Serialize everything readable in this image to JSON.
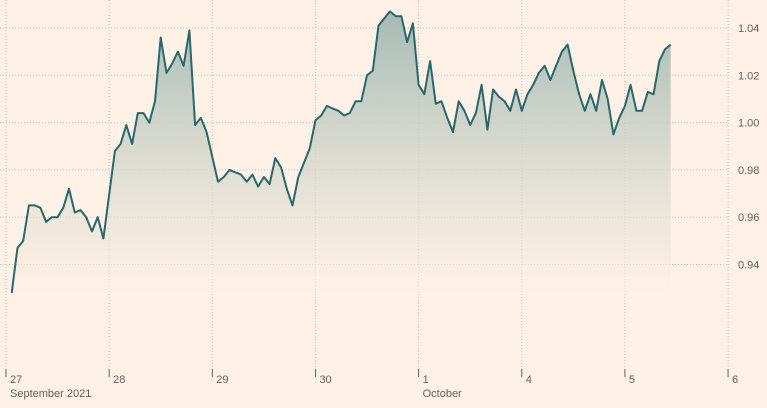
{
  "chart_data": {
    "type": "area",
    "title": "",
    "xlabel": "",
    "ylabel": "",
    "ylim": [
      0.92,
      1.048
    ],
    "yticks": [
      "0.94",
      "0.96",
      "0.98",
      "1.00",
      "1.02",
      "1.04"
    ],
    "ytick_values": [
      0.94,
      0.96,
      0.98,
      1.0,
      1.02,
      1.04
    ],
    "x_days": [
      "2021-09-27",
      "2021-09-28",
      "2021-09-29",
      "2021-09-30",
      "2021-10-01",
      "2021-10-04",
      "2021-10-05",
      "2021-10-06"
    ],
    "xtick_labels": [
      "27",
      "28",
      "29",
      "30",
      "1",
      "4",
      "5",
      "6"
    ],
    "xtick_sublabels": {
      "0": "September 2021",
      "4": "October"
    },
    "grid": true,
    "yaxis_side": "right",
    "colors": {
      "line": "#26686b",
      "fill_top": "#9fb7b1",
      "background": "#fff1e5",
      "grid": "#c9bfb6",
      "text": "#66605c"
    },
    "points": [
      [
        "2021-09-27T01:20",
        0.928
      ],
      [
        "2021-09-27T02:40",
        0.947
      ],
      [
        "2021-09-27T04:00",
        0.95
      ],
      [
        "2021-09-27T05:20",
        0.965
      ],
      [
        "2021-09-27T06:40",
        0.965
      ],
      [
        "2021-09-27T08:00",
        0.964
      ],
      [
        "2021-09-27T09:20",
        0.958
      ],
      [
        "2021-09-27T10:40",
        0.96
      ],
      [
        "2021-09-27T12:00",
        0.96
      ],
      [
        "2021-09-27T13:20",
        0.964
      ],
      [
        "2021-09-27T14:40",
        0.972
      ],
      [
        "2021-09-27T16:00",
        0.962
      ],
      [
        "2021-09-27T17:20",
        0.963
      ],
      [
        "2021-09-27T18:40",
        0.96
      ],
      [
        "2021-09-27T20:00",
        0.954
      ],
      [
        "2021-09-27T21:20",
        0.96
      ],
      [
        "2021-09-27T22:40",
        0.951
      ],
      [
        "2021-09-28T01:20",
        0.988
      ],
      [
        "2021-09-28T02:40",
        0.991
      ],
      [
        "2021-09-28T04:00",
        0.999
      ],
      [
        "2021-09-28T05:20",
        0.991
      ],
      [
        "2021-09-28T06:40",
        1.004
      ],
      [
        "2021-09-28T08:00",
        1.004
      ],
      [
        "2021-09-28T09:20",
        1.0
      ],
      [
        "2021-09-28T10:40",
        1.009
      ],
      [
        "2021-09-28T12:00",
        1.036
      ],
      [
        "2021-09-28T13:20",
        1.021
      ],
      [
        "2021-09-28T14:40",
        1.025
      ],
      [
        "2021-09-28T16:00",
        1.03
      ],
      [
        "2021-09-28T17:20",
        1.024
      ],
      [
        "2021-09-28T18:40",
        1.039
      ],
      [
        "2021-09-28T20:00",
        0.999
      ],
      [
        "2021-09-28T21:20",
        1.002
      ],
      [
        "2021-09-28T22:40",
        0.996
      ],
      [
        "2021-09-29T01:20",
        0.975
      ],
      [
        "2021-09-29T02:40",
        0.977
      ],
      [
        "2021-09-29T04:00",
        0.98
      ],
      [
        "2021-09-29T05:20",
        0.979
      ],
      [
        "2021-09-29T06:40",
        0.978
      ],
      [
        "2021-09-29T08:00",
        0.975
      ],
      [
        "2021-09-29T09:20",
        0.978
      ],
      [
        "2021-09-29T10:40",
        0.973
      ],
      [
        "2021-09-29T12:00",
        0.977
      ],
      [
        "2021-09-29T13:20",
        0.974
      ],
      [
        "2021-09-29T14:40",
        0.985
      ],
      [
        "2021-09-29T16:00",
        0.981
      ],
      [
        "2021-09-29T17:20",
        0.972
      ],
      [
        "2021-09-29T18:40",
        0.965
      ],
      [
        "2021-09-29T20:00",
        0.977
      ],
      [
        "2021-09-29T21:20",
        0.983
      ],
      [
        "2021-09-29T22:40",
        0.989
      ],
      [
        "2021-09-30T00:00",
        1.001
      ],
      [
        "2021-09-30T01:20",
        1.003
      ],
      [
        "2021-09-30T02:40",
        1.007
      ],
      [
        "2021-09-30T04:00",
        1.006
      ],
      [
        "2021-09-30T05:20",
        1.005
      ],
      [
        "2021-09-30T06:40",
        1.003
      ],
      [
        "2021-09-30T08:00",
        1.004
      ],
      [
        "2021-09-30T09:20",
        1.009
      ],
      [
        "2021-09-30T10:40",
        1.009
      ],
      [
        "2021-09-30T12:00",
        1.02
      ],
      [
        "2021-09-30T13:20",
        1.022
      ],
      [
        "2021-09-30T14:40",
        1.041
      ],
      [
        "2021-09-30T16:00",
        1.044
      ],
      [
        "2021-09-30T17:20",
        1.047
      ],
      [
        "2021-09-30T18:40",
        1.045
      ],
      [
        "2021-09-30T20:00",
        1.045
      ],
      [
        "2021-09-30T21:20",
        1.034
      ],
      [
        "2021-09-30T22:40",
        1.042
      ],
      [
        "2021-10-01T00:00",
        1.016
      ],
      [
        "2021-10-01T01:20",
        1.012
      ],
      [
        "2021-10-01T02:40",
        1.026
      ],
      [
        "2021-10-01T04:00",
        1.008
      ],
      [
        "2021-10-01T05:20",
        1.009
      ],
      [
        "2021-10-01T06:40",
        1.002
      ],
      [
        "2021-10-01T08:00",
        0.996
      ],
      [
        "2021-10-01T09:20",
        1.009
      ],
      [
        "2021-10-01T10:40",
        1.005
      ],
      [
        "2021-10-01T12:00",
        0.999
      ],
      [
        "2021-10-01T13:20",
        1.004
      ],
      [
        "2021-10-01T14:40",
        1.016
      ],
      [
        "2021-10-01T16:00",
        0.997
      ],
      [
        "2021-10-01T17:20",
        1.014
      ],
      [
        "2021-10-01T18:40",
        1.011
      ],
      [
        "2021-10-01T20:00",
        1.009
      ],
      [
        "2021-10-01T21:20",
        1.005
      ],
      [
        "2021-10-01T22:40",
        1.014
      ],
      [
        "2021-10-04T00:00",
        1.005
      ],
      [
        "2021-10-04T01:20",
        1.012
      ],
      [
        "2021-10-04T02:40",
        1.016
      ],
      [
        "2021-10-04T04:00",
        1.021
      ],
      [
        "2021-10-04T05:20",
        1.024
      ],
      [
        "2021-10-04T06:40",
        1.018
      ],
      [
        "2021-10-04T08:00",
        1.024
      ],
      [
        "2021-10-04T09:20",
        1.03
      ],
      [
        "2021-10-04T10:40",
        1.033
      ],
      [
        "2021-10-04T12:00",
        1.022
      ],
      [
        "2021-10-04T13:20",
        1.012
      ],
      [
        "2021-10-04T14:40",
        1.005
      ],
      [
        "2021-10-04T16:00",
        1.012
      ],
      [
        "2021-10-04T17:20",
        1.005
      ],
      [
        "2021-10-04T18:40",
        1.018
      ],
      [
        "2021-10-04T20:00",
        1.01
      ],
      [
        "2021-10-04T21:20",
        0.995
      ],
      [
        "2021-10-04T22:40",
        1.002
      ],
      [
        "2021-10-05T00:00",
        1.007
      ],
      [
        "2021-10-05T01:20",
        1.016
      ],
      [
        "2021-10-05T02:40",
        1.005
      ],
      [
        "2021-10-05T04:00",
        1.005
      ],
      [
        "2021-10-05T05:20",
        1.013
      ],
      [
        "2021-10-05T06:40",
        1.012
      ],
      [
        "2021-10-05T08:00",
        1.026
      ],
      [
        "2021-10-05T09:20",
        1.031
      ],
      [
        "2021-10-05T10:40",
        1.033
      ]
    ]
  }
}
